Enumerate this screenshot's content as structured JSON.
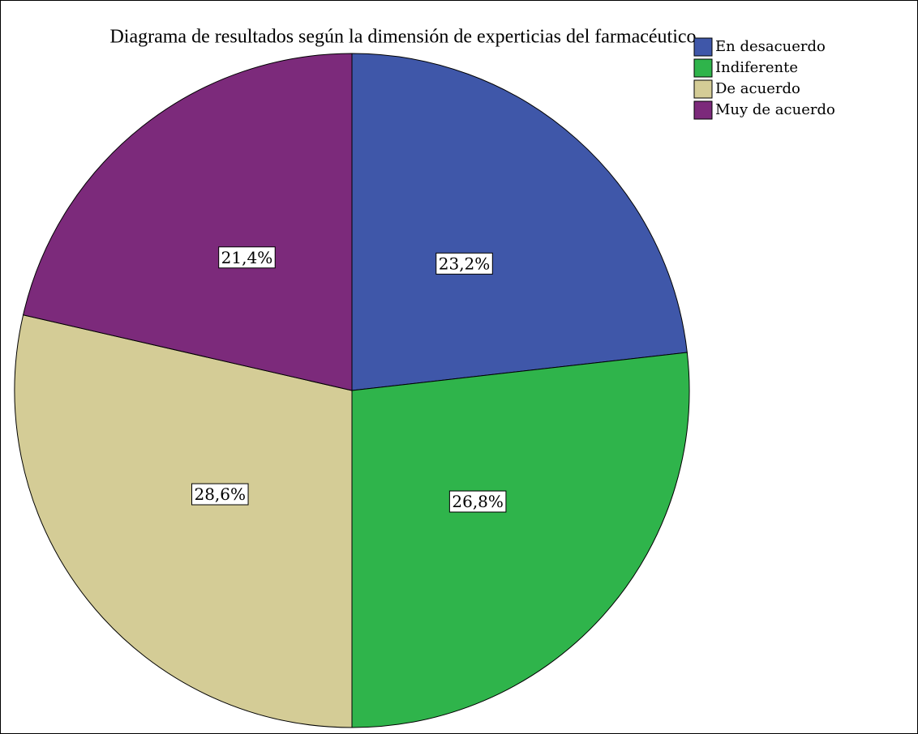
{
  "chart_data": {
    "type": "pie",
    "title": "Diagrama de resultados según la dimensión de experticias del farmacéutico",
    "categories": [
      "En desacuerdo",
      "Indiferente",
      "De acuerdo",
      "Muy de acuerdo"
    ],
    "values": [
      23.2,
      26.8,
      28.6,
      21.4
    ],
    "value_labels": [
      "23,2%",
      "26,8%",
      "28,6%",
      "21,4%"
    ],
    "colors": [
      "#3f57a9",
      "#2fb44b",
      "#d4cc96",
      "#7c2a7b"
    ],
    "legend": "top-right"
  }
}
